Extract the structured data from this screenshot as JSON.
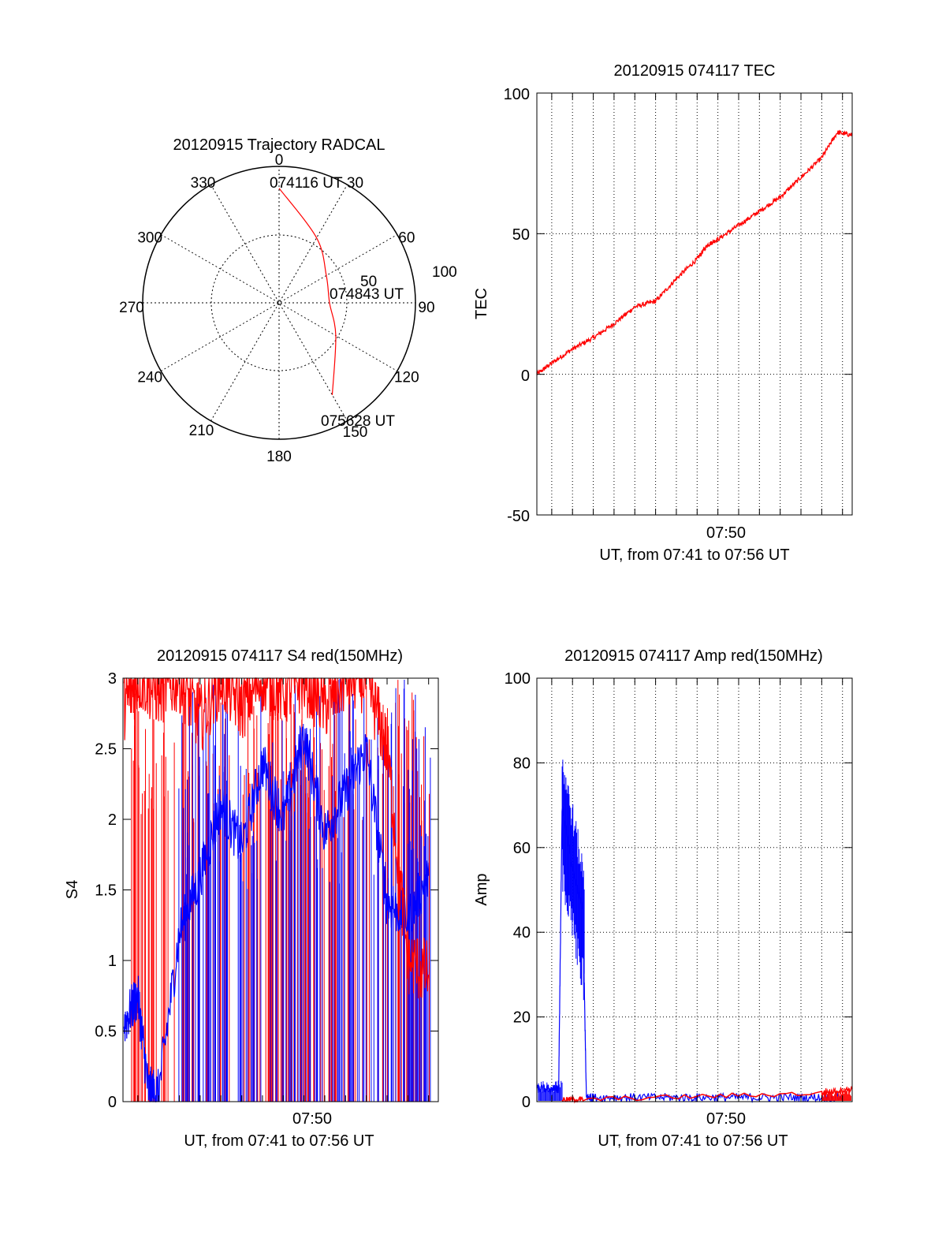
{
  "chart_data": [
    {
      "type": "polar",
      "title": "20120915 Trajectory RADCAL",
      "angle_labels": [
        "0",
        "30",
        "60",
        "90",
        "120",
        "150",
        "180",
        "210",
        "240",
        "270",
        "300",
        "330"
      ],
      "radial_labels": [
        "50",
        "100"
      ],
      "trajectory": {
        "color": "#ff0000",
        "points": [
          {
            "az": 0,
            "r": 84
          },
          {
            "az": 30,
            "r": 55
          },
          {
            "az": 60,
            "r": 40
          },
          {
            "az": 90,
            "r": 37
          },
          {
            "az": 120,
            "r": 48
          },
          {
            "az": 150,
            "r": 78
          }
        ]
      },
      "annotations": [
        "074116 UT",
        "074843 UT",
        "075628 UT"
      ]
    },
    {
      "type": "line",
      "title": "20120915 074117 TEC",
      "xlabel": "UT, from 07:41 to 07:56 UT",
      "ylabel": "TEC",
      "xtick": "07:50",
      "xlim": [
        "07:41:17",
        "07:56:28"
      ],
      "ylim": [
        -50,
        100
      ],
      "yticks": [
        "100",
        "50",
        "0",
        "-50"
      ],
      "grid": true,
      "series": [
        {
          "color": "#ff0000",
          "x": [
            "07:41:17",
            "07:42:00",
            "07:43:00",
            "07:44:00",
            "07:45:00",
            "07:46:00",
            "07:47:00",
            "07:48:00",
            "07:49:00",
            "07:49:30",
            "07:50:00",
            "07:51:00",
            "07:52:00",
            "07:53:00",
            "07:54:00",
            "07:55:00",
            "07:55:45",
            "07:56:28"
          ],
          "values": [
            0,
            4,
            9,
            13,
            18,
            24,
            26,
            34,
            41,
            46,
            48,
            53,
            58,
            63,
            70,
            77,
            86,
            85
          ]
        }
      ]
    },
    {
      "type": "line",
      "title": "20120915 074117 S4 red(150MHz)",
      "xlabel": "UT, from 07:41 to 07:56 UT",
      "ylabel": "S4",
      "xtick": "07:50",
      "ylim": [
        0,
        3
      ],
      "yticks": [
        "3",
        "2.5",
        "2",
        "1.5",
        "1",
        "0.5",
        "0"
      ],
      "series": [
        {
          "color": "#0000ff",
          "x": [
            "07:41:20",
            "07:42:00",
            "07:42:30",
            "07:43:00",
            "07:44:00",
            "07:45:00",
            "07:46:00",
            "07:47:00",
            "07:48:00",
            "07:49:00",
            "07:50:00",
            "07:51:00",
            "07:52:00",
            "07:53:00",
            "07:54:00",
            "07:55:00",
            "07:56:00"
          ],
          "values": [
            0.55,
            0.75,
            0.08,
            0.06,
            1.2,
            1.6,
            2.1,
            1.8,
            2.4,
            2.0,
            2.6,
            1.9,
            2.2,
            2.5,
            1.4,
            1.3,
            1.6
          ]
        },
        {
          "color": "#ff0000",
          "x": [
            "07:41:20",
            "07:42:00",
            "07:43:00",
            "07:44:00",
            "07:45:00",
            "07:46:00",
            "07:47:00",
            "07:48:00",
            "07:49:00",
            "07:50:00",
            "07:51:00",
            "07:52:00",
            "07:53:00",
            "07:54:00",
            "07:55:00",
            "07:56:00"
          ],
          "values": [
            2.8,
            3.0,
            2.9,
            3.0,
            2.7,
            3.0,
            2.8,
            3.0,
            2.9,
            3.0,
            2.8,
            3.0,
            3.0,
            2.5,
            1.0,
            0.9
          ]
        }
      ]
    },
    {
      "type": "line",
      "title": "20120915 074117 Amp red(150MHz)",
      "xlabel": "UT, from 07:41 to 07:56 UT",
      "ylabel": "Amp",
      "xtick": "07:50",
      "ylim": [
        0,
        100
      ],
      "yticks": [
        "100",
        "80",
        "60",
        "40",
        "20",
        "0"
      ],
      "grid": true,
      "series": [
        {
          "color": "#0000ff",
          "x": [
            "07:41:17",
            "07:42:00",
            "07:42:20",
            "07:42:30",
            "07:43:00",
            "07:43:30",
            "07:43:40",
            "07:44:00",
            "07:46:00",
            "07:48:00",
            "07:50:00",
            "07:52:00",
            "07:54:00",
            "07:56:00"
          ],
          "values": [
            3,
            3,
            3,
            70,
            55,
            45,
            1,
            1,
            1,
            1,
            1,
            1,
            1,
            1
          ]
        },
        {
          "color": "#ff0000",
          "x": [
            "07:42:30",
            "07:43:30",
            "07:55:00",
            "07:56:28"
          ],
          "values": [
            0.5,
            0.5,
            2,
            3
          ]
        }
      ]
    }
  ]
}
